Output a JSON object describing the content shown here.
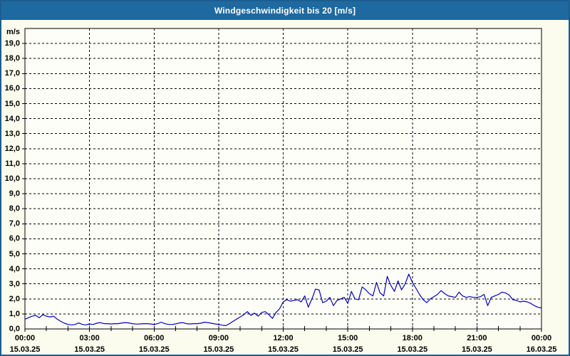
{
  "window": {
    "title": "Windgeschwindigkeit bis 20 [m/s]"
  },
  "colors": {
    "title_bar": "#1e69a0",
    "title_text": "#ffffff",
    "page_bg": "#fbfbee",
    "plot_bg": "#fefef8",
    "grid": "#000000",
    "axis": "#000000",
    "line": "#0000cc",
    "border": "#1b5e90",
    "label_text": "#000000"
  },
  "chart_data": {
    "type": "line",
    "title": "Windgeschwindigkeit bis 20 [m/s]",
    "ylabel": "m/s",
    "xlabel": "",
    "ylim": [
      0,
      20
    ],
    "y_tick_step": 1.0,
    "y_tick_labels": [
      "0,0",
      "1,0",
      "2,0",
      "3,0",
      "4,0",
      "5,0",
      "6,0",
      "7,0",
      "8,0",
      "9,0",
      "10,0",
      "11,0",
      "12,0",
      "13,0",
      "14,0",
      "15,0",
      "16,0",
      "17,0",
      "18,0",
      "19,0"
    ],
    "grid": "dashed",
    "legend": "none",
    "x_start_hours": 0,
    "x_end_hours": 24,
    "x_major_step_hours": 3,
    "x_minor_step_hours": 1,
    "x_ticks": [
      {
        "hours": 0,
        "time": "00:00",
        "date": "15.03.25"
      },
      {
        "hours": 3,
        "time": "03:00",
        "date": "15.03.25"
      },
      {
        "hours": 6,
        "time": "06:00",
        "date": "15.03.25"
      },
      {
        "hours": 9,
        "time": "09:00",
        "date": "15.03.25"
      },
      {
        "hours": 12,
        "time": "12:00",
        "date": "15.03.25"
      },
      {
        "hours": 15,
        "time": "15:00",
        "date": "15.03.25"
      },
      {
        "hours": 18,
        "time": "18:00",
        "date": "15.03.25"
      },
      {
        "hours": 21,
        "time": "21:00",
        "date": "15.03.25"
      },
      {
        "hours": 24,
        "time": "00:00",
        "date": "16.03.25"
      }
    ],
    "series": [
      {
        "name": "Windgeschwindigkeit",
        "sample_interval_minutes": 10,
        "values": [
          0.65,
          0.75,
          0.85,
          0.9,
          0.75,
          0.95,
          0.85,
          0.8,
          0.85,
          0.65,
          0.5,
          0.38,
          0.3,
          0.27,
          0.3,
          0.4,
          0.3,
          0.27,
          0.33,
          0.3,
          0.38,
          0.42,
          0.35,
          0.35,
          0.33,
          0.35,
          0.35,
          0.4,
          0.42,
          0.4,
          0.35,
          0.32,
          0.33,
          0.35,
          0.35,
          0.33,
          0.3,
          0.35,
          0.45,
          0.35,
          0.3,
          0.3,
          0.33,
          0.4,
          0.42,
          0.35,
          0.33,
          0.35,
          0.35,
          0.38,
          0.45,
          0.42,
          0.38,
          0.33,
          0.3,
          0.25,
          0.22,
          0.35,
          0.5,
          0.65,
          0.8,
          0.95,
          1.15,
          0.9,
          1.05,
          0.85,
          1.1,
          1.15,
          0.95,
          0.7,
          1.1,
          1.35,
          1.8,
          1.95,
          1.85,
          1.9,
          1.95,
          1.8,
          2.2,
          1.45,
          2.0,
          2.65,
          2.6,
          1.75,
          1.85,
          2.1,
          1.55,
          1.9,
          2.0,
          2.1,
          1.7,
          2.5,
          2.0,
          1.95,
          2.8,
          2.6,
          2.35,
          2.2,
          3.1,
          2.4,
          2.2,
          3.5,
          2.9,
          2.5,
          3.2,
          2.6,
          3.0,
          3.65,
          3.1,
          2.7,
          2.3,
          1.95,
          1.75,
          2.0,
          2.15,
          2.3,
          2.55,
          2.35,
          2.2,
          2.15,
          2.1,
          2.45,
          2.2,
          2.1,
          2.15,
          2.1,
          2.1,
          2.15,
          2.3,
          1.55,
          2.1,
          2.2,
          2.3,
          2.45,
          2.4,
          2.25,
          1.95,
          1.9,
          1.8,
          1.85,
          1.8,
          1.7,
          1.55,
          1.45,
          1.4
        ]
      }
    ]
  }
}
